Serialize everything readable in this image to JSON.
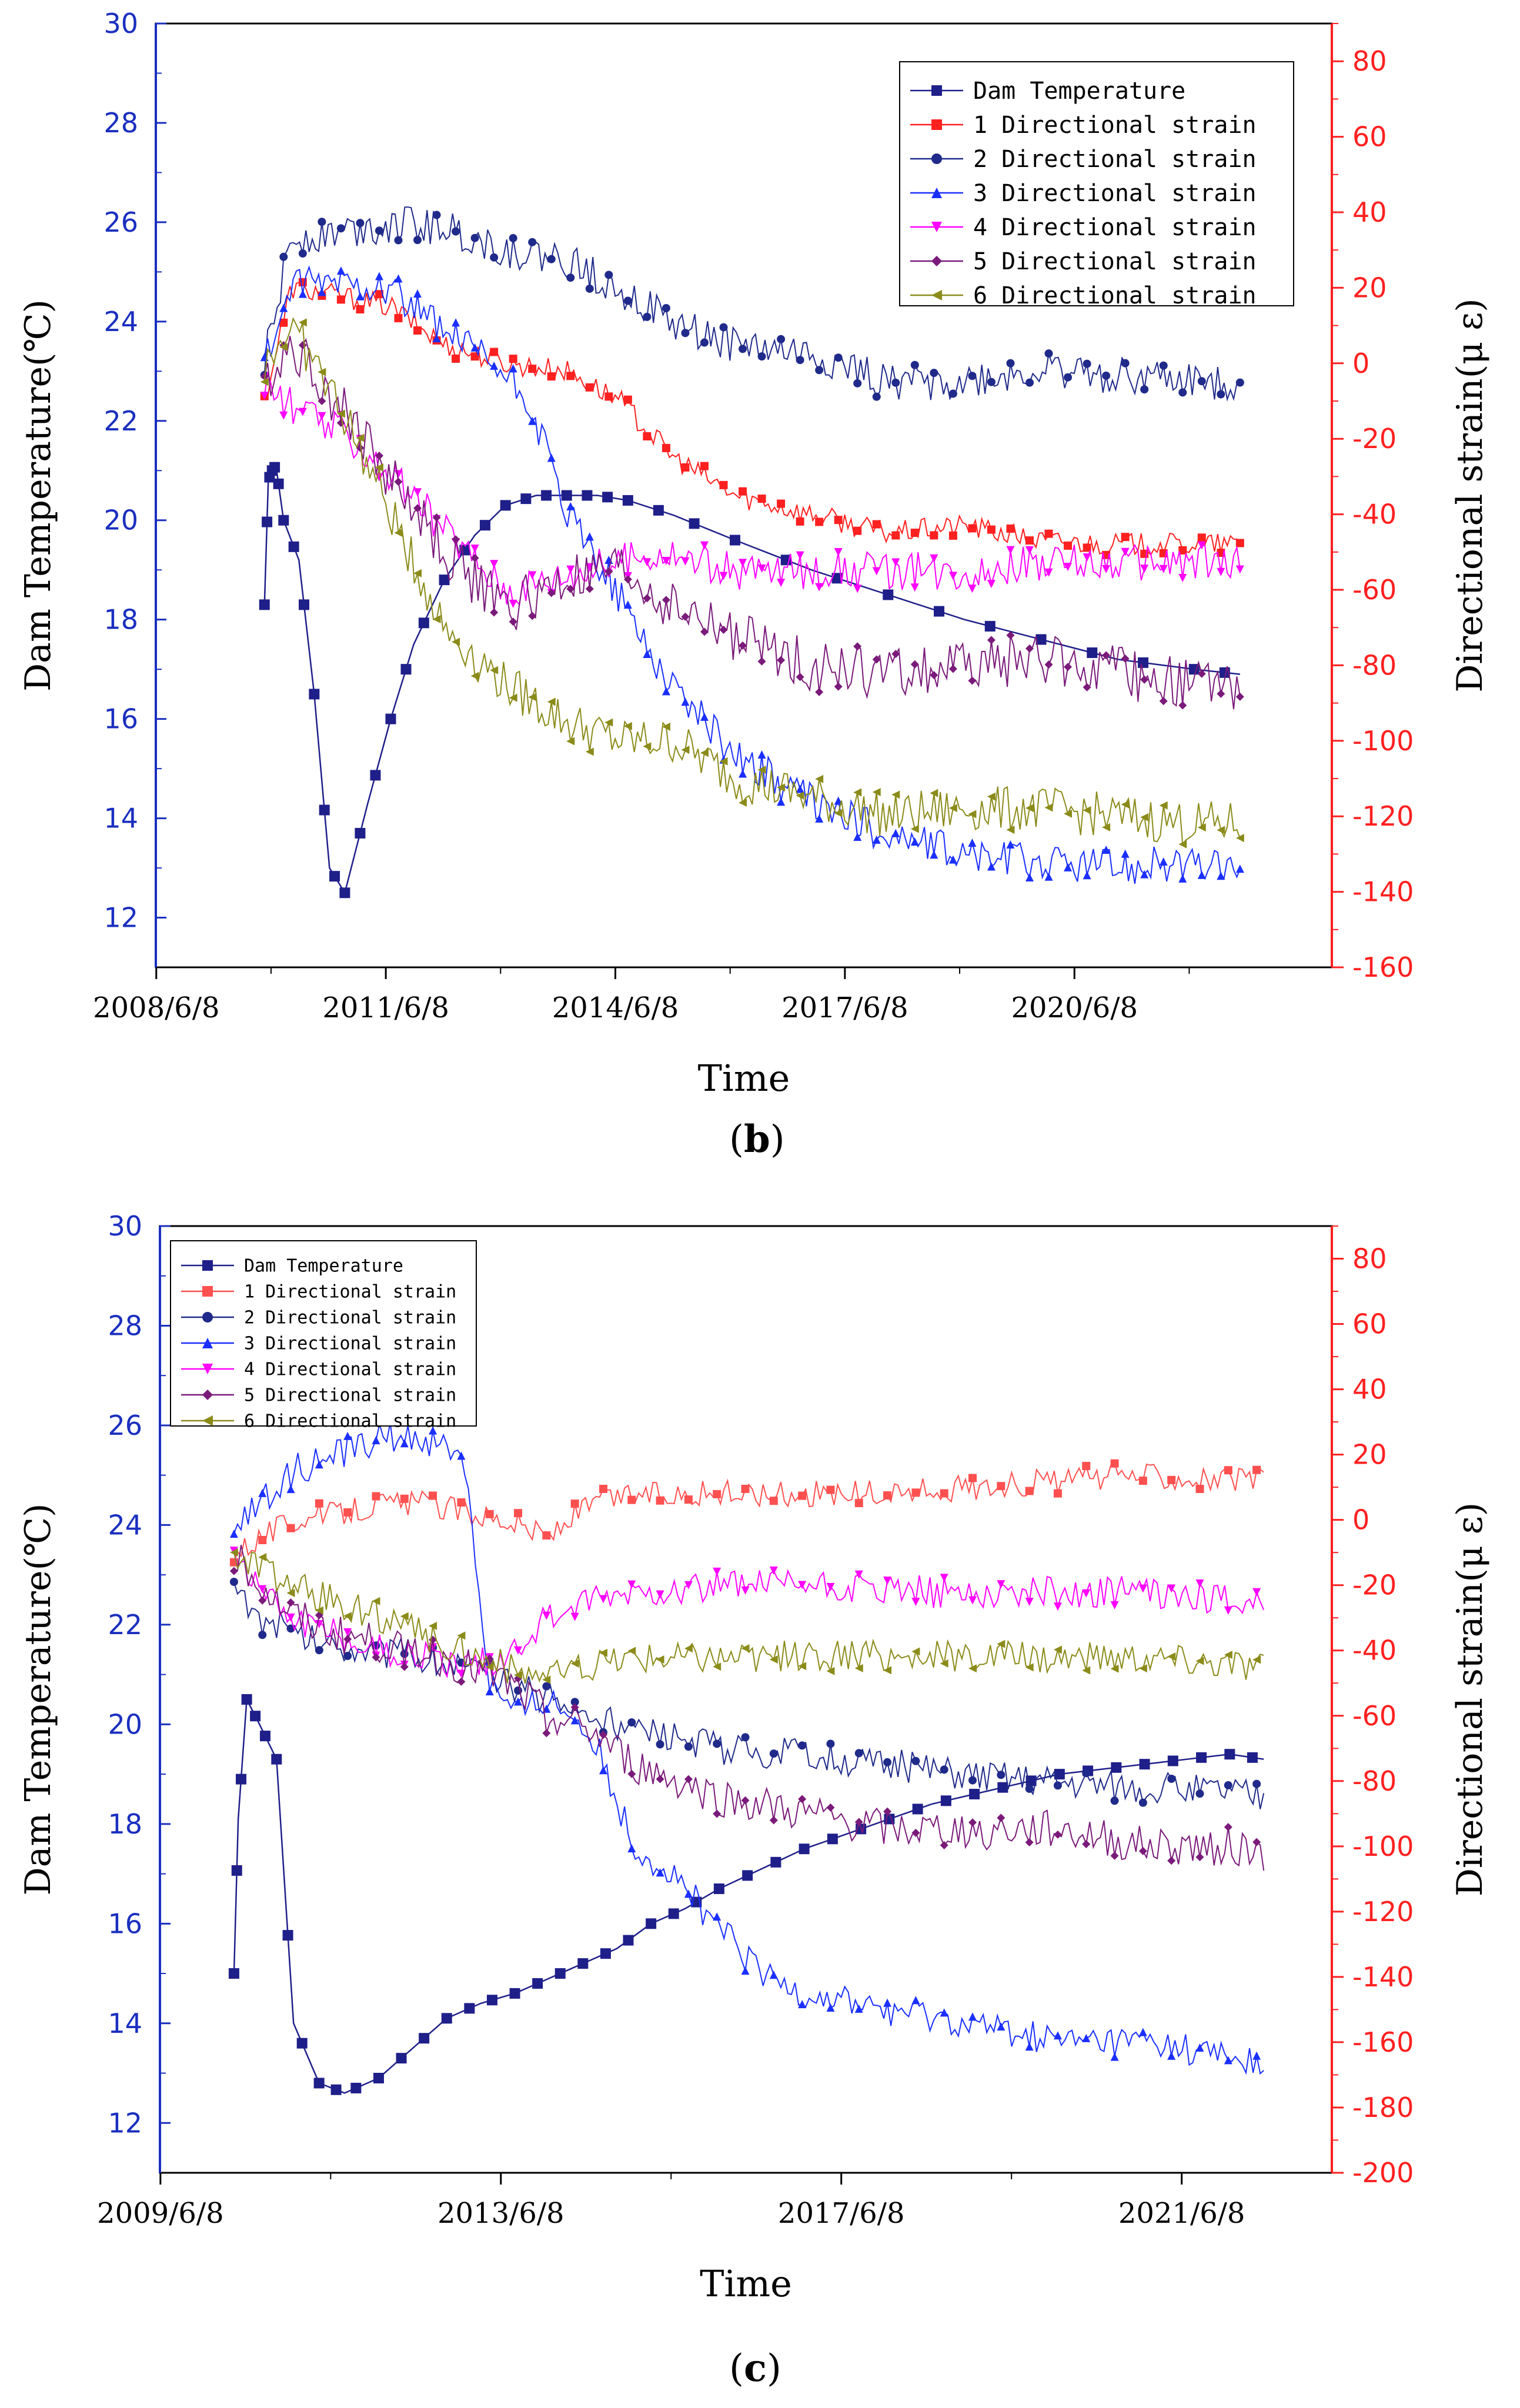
{
  "chart_data": [
    {
      "type": "line",
      "panel": "b",
      "xlabel": "Time",
      "ylabel_left": "Dam Temperature(℃)",
      "ylabel_right": "Directional strain(μ ε)",
      "x_ticks": [
        "2008/6/8",
        "2011/6/8",
        "2014/6/8",
        "2017/6/8",
        "2020/6/8"
      ],
      "x_range": [
        2008.43,
        2023.8
      ],
      "ylim_left": [
        11,
        30
      ],
      "ylim_right": [
        -160,
        90
      ],
      "y_ticks_left": [
        "12",
        "14",
        "16",
        "18",
        "20",
        "22",
        "24",
        "26",
        "28",
        "30"
      ],
      "y_ticks_right": [
        "-160",
        "-140",
        "-120",
        "-100",
        "-80",
        "-60",
        "-40",
        "-20",
        "0",
        "20",
        "40",
        "60",
        "80"
      ],
      "legend_position": "top-right",
      "series": [
        {
          "name": "Dam Temperature",
          "axis": "left",
          "color": "#1f1f8a",
          "marker": "square",
          "marker_step": 1,
          "noise": 0,
          "x": [
            2009.85,
            2009.9,
            2009.95,
            2010.0,
            2010.1,
            2010.3,
            2010.5,
            2010.7,
            2010.9,
            2011.2,
            2011.5,
            2011.8,
            2012.2,
            2012.6,
            2013.0,
            2013.4,
            2013.8,
            2014.2,
            2014.6,
            2015.2,
            2016.0,
            2017.0,
            2018.0,
            2019.0,
            2020.0,
            2021.0,
            2022.0,
            2022.6
          ],
          "y": [
            18.3,
            20.8,
            21.0,
            21.1,
            20.0,
            19.2,
            16.5,
            13.0,
            12.5,
            14.3,
            16.0,
            17.5,
            18.8,
            19.7,
            20.3,
            20.5,
            20.5,
            20.5,
            20.4,
            20.1,
            19.6,
            19.0,
            18.5,
            18.0,
            17.6,
            17.2,
            17.0,
            16.9
          ]
        },
        {
          "name": "1 Directional strain",
          "axis": "right",
          "color": "#ff2020",
          "marker": "square",
          "marker_step": 3,
          "noise": 3,
          "x": [
            2009.85,
            2010.2,
            2010.8,
            2011.5,
            2012.2,
            2013.0,
            2013.8,
            2014.5,
            2015.2,
            2016.0,
            2017.0,
            2018.0,
            2019.0,
            2020.0,
            2021.0,
            2022.0,
            2022.6
          ],
          "y": [
            -10,
            20,
            18,
            15,
            5,
            0,
            -2,
            -10,
            -25,
            -35,
            -40,
            -45,
            -43,
            -47,
            -48,
            -48,
            -48
          ]
        },
        {
          "name": "2 Directional strain",
          "axis": "right",
          "color": "#1f2a8a",
          "marker": "circle",
          "marker_step": 3,
          "noise": 5,
          "x": [
            2009.85,
            2010.2,
            2010.8,
            2011.5,
            2012.2,
            2013.0,
            2013.8,
            2014.5,
            2015.2,
            2016.0,
            2017.0,
            2018.0,
            2019.0,
            2020.0,
            2021.0,
            2022.0,
            2022.6
          ],
          "y": [
            0,
            33,
            35,
            37,
            36,
            30,
            27,
            20,
            10,
            5,
            2,
            -5,
            -5,
            -2,
            -3,
            -5,
            -5
          ]
        },
        {
          "name": "3 Directional strain",
          "axis": "right",
          "color": "#1a2fff",
          "marker": "triangle-up",
          "marker_step": 3,
          "noise": 5,
          "x": [
            2009.85,
            2010.2,
            2010.8,
            2011.5,
            2012.2,
            2012.8,
            2013.3,
            2013.8,
            2014.3,
            2015.0,
            2015.8,
            2016.5,
            2017.2,
            2018.0,
            2019.0,
            2020.0,
            2021.0,
            2022.0,
            2022.6
          ],
          "y": [
            0,
            20,
            22,
            20,
            8,
            0,
            -10,
            -40,
            -55,
            -80,
            -100,
            -110,
            -118,
            -125,
            -130,
            -132,
            -133,
            -133,
            -133
          ]
        },
        {
          "name": "4 Directional strain",
          "axis": "right",
          "color": "#ff00ff",
          "marker": "triangle-down",
          "marker_step": 3,
          "noise": 5,
          "x": [
            2009.85,
            2010.1,
            2010.5,
            2011.0,
            2011.5,
            2012.0,
            2012.5,
            2013.0,
            2014.0,
            2015.0,
            2016.0,
            2017.0,
            2018.0,
            2019.0,
            2020.0,
            2021.0,
            2022.0,
            2022.6
          ],
          "y": [
            -5,
            -10,
            -15,
            -20,
            -30,
            -40,
            -50,
            -60,
            -55,
            -50,
            -55,
            -55,
            -55,
            -55,
            -53,
            -53,
            -53,
            -53
          ]
        },
        {
          "name": "5 Directional strain",
          "axis": "right",
          "color": "#7a1a7a",
          "marker": "diamond",
          "marker_step": 3,
          "noise": 7,
          "x": [
            2009.85,
            2010.2,
            2010.8,
            2011.5,
            2012.2,
            2013.0,
            2013.8,
            2014.5,
            2015.2,
            2016.0,
            2017.0,
            2018.0,
            2019.0,
            2020.0,
            2021.0,
            2022.0,
            2022.6
          ],
          "y": [
            -5,
            5,
            -10,
            -30,
            -50,
            -65,
            -58,
            -55,
            -65,
            -72,
            -80,
            -82,
            -80,
            -78,
            -82,
            -85,
            -85
          ]
        },
        {
          "name": "6 Directional strain",
          "axis": "right",
          "color": "#8b8b1a",
          "marker": "triangle-left",
          "marker_step": 3,
          "noise": 6,
          "x": [
            2009.85,
            2010.2,
            2010.8,
            2011.5,
            2012.2,
            2013.0,
            2013.8,
            2014.5,
            2015.2,
            2016.0,
            2017.0,
            2018.0,
            2019.0,
            2020.0,
            2021.0,
            2022.0,
            2022.6
          ],
          "y": [
            0,
            10,
            -10,
            -40,
            -70,
            -85,
            -95,
            -100,
            -100,
            -110,
            -115,
            -120,
            -118,
            -118,
            -120,
            -122,
            -122
          ]
        }
      ]
    },
    {
      "type": "line",
      "panel": "c",
      "xlabel": "Time",
      "ylabel_left": "Dam Temperature(℃)",
      "ylabel_right": "Directional strain(μ ε)",
      "x_ticks": [
        "2009/6/8",
        "2013/6/8",
        "2017/6/8",
        "2021/6/8"
      ],
      "x_range": [
        2009.43,
        2023.2
      ],
      "ylim_left": [
        11,
        30
      ],
      "ylim_right": [
        -200,
        90
      ],
      "y_ticks_left": [
        "12",
        "14",
        "16",
        "18",
        "20",
        "22",
        "24",
        "26",
        "28",
        "30"
      ],
      "y_ticks_right": [
        "-200",
        "-180",
        "-160",
        "-140",
        "-120",
        "-100",
        "-80",
        "-60",
        "-40",
        "-20",
        "0",
        "20",
        "40",
        "60",
        "80"
      ],
      "legend_position": "top-left",
      "series": [
        {
          "name": "Dam Temperature",
          "axis": "left",
          "color": "#1f1f8a",
          "marker": "square",
          "marker_step": 1,
          "noise": 0,
          "x": [
            2010.3,
            2010.35,
            2010.45,
            2010.6,
            2010.8,
            2011.0,
            2011.3,
            2011.6,
            2012.0,
            2012.4,
            2012.8,
            2013.2,
            2013.6,
            2014.0,
            2014.4,
            2014.8,
            2015.2,
            2015.6,
            2016.0,
            2016.5,
            2017.0,
            2017.5,
            2018.0,
            2018.5,
            2019.0,
            2019.5,
            2020.0,
            2020.5,
            2021.0,
            2021.5,
            2022.0,
            2022.4
          ],
          "y": [
            15.0,
            18.1,
            20.5,
            20.0,
            19.3,
            14.0,
            12.8,
            12.6,
            12.9,
            13.5,
            14.1,
            14.4,
            14.6,
            14.9,
            15.2,
            15.5,
            16.0,
            16.3,
            16.7,
            17.1,
            17.5,
            17.8,
            18.1,
            18.4,
            18.6,
            18.8,
            19.0,
            19.1,
            19.2,
            19.3,
            19.4,
            19.3
          ]
        },
        {
          "name": "1 Directional strain",
          "axis": "right",
          "color": "#ff5050",
          "marker": "square",
          "marker_step": 4,
          "noise": 4,
          "x": [
            2010.3,
            2010.6,
            2011.0,
            2011.5,
            2012.0,
            2012.5,
            2013.0,
            2013.5,
            2014.0,
            2014.5,
            2015.0,
            2016.0,
            2017.0,
            2018.0,
            2019.0,
            2020.0,
            2021.0,
            2022.0,
            2022.4
          ],
          "y": [
            -10,
            -5,
            0,
            2,
            5,
            5,
            3,
            0,
            -5,
            5,
            8,
            8,
            8,
            8,
            10,
            12,
            14,
            12,
            12
          ]
        },
        {
          "name": "2 Directional strain",
          "axis": "right",
          "color": "#1f2a8a",
          "marker": "circle",
          "marker_step": 4,
          "noise": 5,
          "x": [
            2010.3,
            2010.6,
            2011.0,
            2011.5,
            2012.0,
            2012.5,
            2013.0,
            2013.5,
            2014.0,
            2014.5,
            2015.0,
            2016.0,
            2017.0,
            2018.0,
            2019.0,
            2020.0,
            2021.0,
            2022.0,
            2022.4
          ],
          "y": [
            -20,
            -30,
            -35,
            -38,
            -40,
            -42,
            -45,
            -50,
            -55,
            -60,
            -65,
            -70,
            -72,
            -75,
            -78,
            -80,
            -82,
            -83,
            -85
          ]
        },
        {
          "name": "3 Directional strain",
          "axis": "right",
          "color": "#1a2fff",
          "marker": "triangle-up",
          "marker_step": 4,
          "noise": 5,
          "x": [
            2010.3,
            2010.6,
            2011.0,
            2011.5,
            2012.0,
            2012.5,
            2013.0,
            2013.3,
            2013.6,
            2014.0,
            2014.5,
            2015.0,
            2015.5,
            2016.0,
            2016.5,
            2017.0,
            2018.0,
            2019.0,
            2020.0,
            2021.0,
            2022.0,
            2022.4
          ],
          "y": [
            0,
            5,
            15,
            20,
            25,
            25,
            20,
            -50,
            -60,
            -55,
            -65,
            -100,
            -110,
            -125,
            -140,
            -145,
            -150,
            -155,
            -160,
            -160,
            -165,
            -168
          ]
        },
        {
          "name": "4 Directional strain",
          "axis": "right",
          "color": "#ff00ff",
          "marker": "triangle-down",
          "marker_step": 4,
          "noise": 5,
          "x": [
            2010.3,
            2010.6,
            2011.0,
            2011.5,
            2012.0,
            2012.5,
            2013.0,
            2013.5,
            2014.0,
            2014.5,
            2015.0,
            2016.0,
            2017.0,
            2018.0,
            2019.0,
            2020.0,
            2021.0,
            2022.0,
            2022.4
          ],
          "y": [
            -10,
            -20,
            -30,
            -35,
            -40,
            -42,
            -45,
            -42,
            -30,
            -25,
            -22,
            -20,
            -20,
            -22,
            -22,
            -22,
            -22,
            -25,
            -25
          ]
        },
        {
          "name": "5 Directional strain",
          "axis": "right",
          "color": "#7a1a7a",
          "marker": "diamond",
          "marker_step": 4,
          "noise": 6,
          "x": [
            2010.3,
            2010.6,
            2011.0,
            2011.5,
            2012.0,
            2012.5,
            2013.0,
            2013.5,
            2014.0,
            2014.5,
            2015.0,
            2016.0,
            2017.0,
            2018.0,
            2019.0,
            2020.0,
            2021.0,
            2022.0,
            2022.4
          ],
          "y": [
            -10,
            -20,
            -30,
            -35,
            -38,
            -40,
            -45,
            -50,
            -60,
            -65,
            -75,
            -85,
            -90,
            -95,
            -95,
            -95,
            -100,
            -100,
            -102
          ]
        },
        {
          "name": "6 Directional strain",
          "axis": "right",
          "color": "#8b8b1a",
          "marker": "triangle-left",
          "marker_step": 4,
          "noise": 5,
          "x": [
            2010.3,
            2010.6,
            2011.0,
            2011.5,
            2012.0,
            2012.5,
            2013.0,
            2013.5,
            2014.0,
            2014.5,
            2015.0,
            2016.0,
            2017.0,
            2018.0,
            2019.0,
            2020.0,
            2021.0,
            2022.0,
            2022.4
          ],
          "y": [
            -10,
            -15,
            -20,
            -25,
            -30,
            -35,
            -40,
            -45,
            -48,
            -45,
            -42,
            -42,
            -42,
            -42,
            -42,
            -42,
            -42,
            -44,
            -45
          ]
        }
      ]
    }
  ],
  "panel_labels": [
    "b",
    "c"
  ]
}
